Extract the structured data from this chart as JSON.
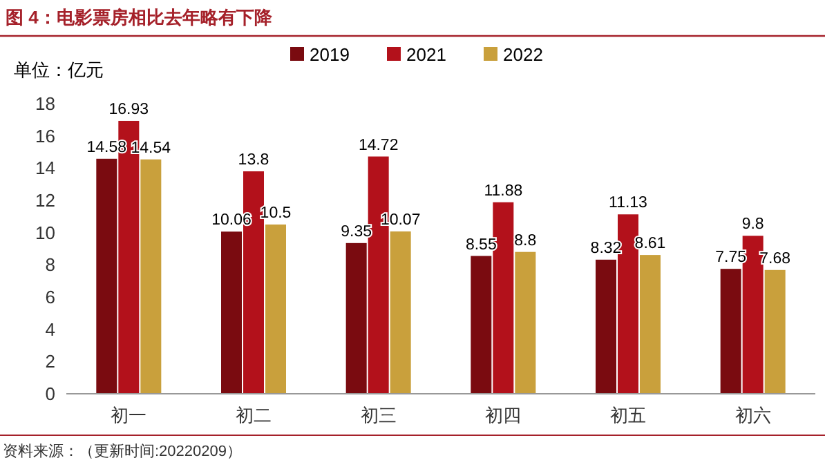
{
  "chart_data": {
    "type": "bar",
    "title": "图 4：电影票房相比去年略有下降",
    "ylabel": "单位：亿元",
    "categories": [
      "初一",
      "初二",
      "初三",
      "初四",
      "初五",
      "初六"
    ],
    "series": [
      {
        "name": "2019",
        "color": "#7a0b10",
        "values": [
          14.58,
          10.06,
          9.35,
          8.55,
          8.32,
          7.75
        ]
      },
      {
        "name": "2021",
        "color": "#b3111b",
        "values": [
          16.93,
          13.8,
          14.72,
          11.88,
          11.13,
          9.8
        ]
      },
      {
        "name": "2022",
        "color": "#c9a03c",
        "values": [
          14.54,
          10.5,
          10.07,
          8.8,
          8.61,
          7.68
        ]
      }
    ],
    "ylim": [
      0,
      18
    ],
    "yticks": [
      0,
      2,
      4,
      6,
      8,
      10,
      12,
      14,
      16,
      18
    ],
    "data_labels": true,
    "legend": "top",
    "annotations": [
      "资料来源：（更新时间:20220209）"
    ]
  }
}
